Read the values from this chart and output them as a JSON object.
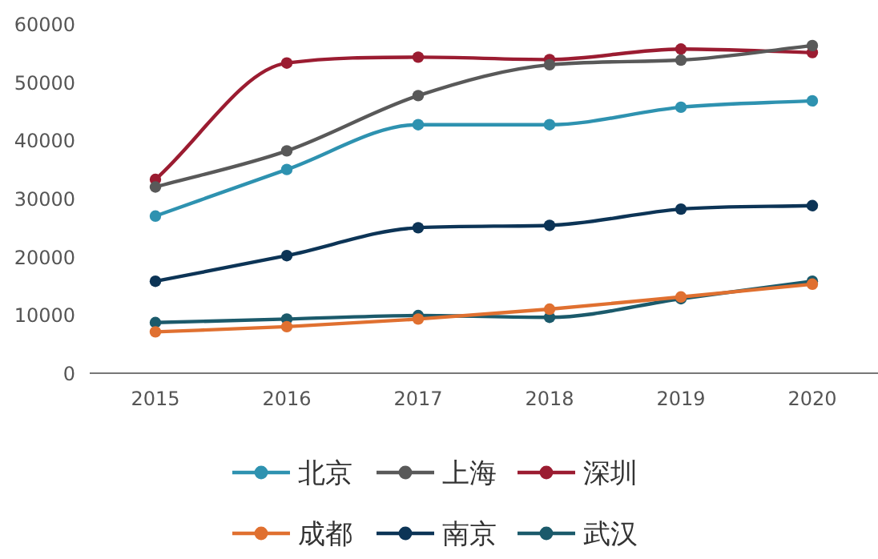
{
  "chart_data": {
    "type": "line",
    "categories": [
      "2015",
      "2016",
      "2017",
      "2018",
      "2019",
      "2020"
    ],
    "ylim": [
      0,
      60000
    ],
    "yticks": [
      0,
      10000,
      20000,
      30000,
      40000,
      50000,
      60000
    ],
    "grid": false,
    "legend": "bottom",
    "marker": "circle",
    "line_style": "solid",
    "series": [
      {
        "name": "北京",
        "color": "#2e92b0",
        "values": [
          27000,
          35000,
          42700,
          42700,
          45700,
          46800
        ]
      },
      {
        "name": "上海",
        "color": "#595959",
        "values": [
          32000,
          38200,
          47700,
          53000,
          53800,
          56300
        ]
      },
      {
        "name": "深圳",
        "color": "#9b1c31",
        "values": [
          33300,
          53300,
          54300,
          53900,
          55700,
          55100
        ]
      },
      {
        "name": "成都",
        "color": "#e07030",
        "values": [
          7100,
          8000,
          9300,
          11000,
          13100,
          15300
        ]
      },
      {
        "name": "南京",
        "color": "#0c3456",
        "values": [
          15800,
          20200,
          25000,
          25400,
          28200,
          28800
        ]
      },
      {
        "name": "武汉",
        "color": "#1b5a6b",
        "values": [
          8700,
          9300,
          9900,
          9600,
          12800,
          15800
        ]
      }
    ]
  }
}
